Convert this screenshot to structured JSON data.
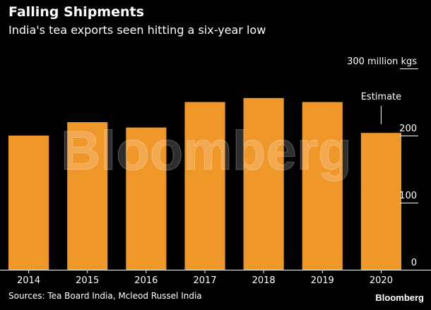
{
  "header": {
    "title": "Falling Shipments",
    "subtitle": "India's tea exports seen hitting a six-year low"
  },
  "footer": {
    "source": "Sources: Tea Board India, Mcleod Russel India",
    "brand": "Bloomberg"
  },
  "watermark": "Bloomberg",
  "colors": {
    "bar": "#F0972A",
    "background": "#000000",
    "text": "#FFFFFF",
    "axis": "#FFFFFF"
  },
  "chart_data": {
    "type": "bar",
    "title": "Falling Shipments",
    "subtitle": "India's tea exports seen hitting a six-year low",
    "categories": [
      "2014",
      "2015",
      "2016",
      "2017",
      "2018",
      "2019",
      "2020"
    ],
    "values": [
      200,
      220,
      212,
      250,
      256,
      250,
      204
    ],
    "unit_label": "300 million kgs",
    "ylim": [
      0,
      300
    ],
    "yticks": [
      {
        "value": 0,
        "label": "0"
      },
      {
        "value": 100,
        "label": "100"
      },
      {
        "value": 200,
        "label": "200"
      },
      {
        "value": 300,
        "label": "300 million kgs"
      }
    ],
    "annotations": [
      {
        "category": "2020",
        "text": "Estimate"
      }
    ],
    "grid": false,
    "axis_side": "right"
  }
}
